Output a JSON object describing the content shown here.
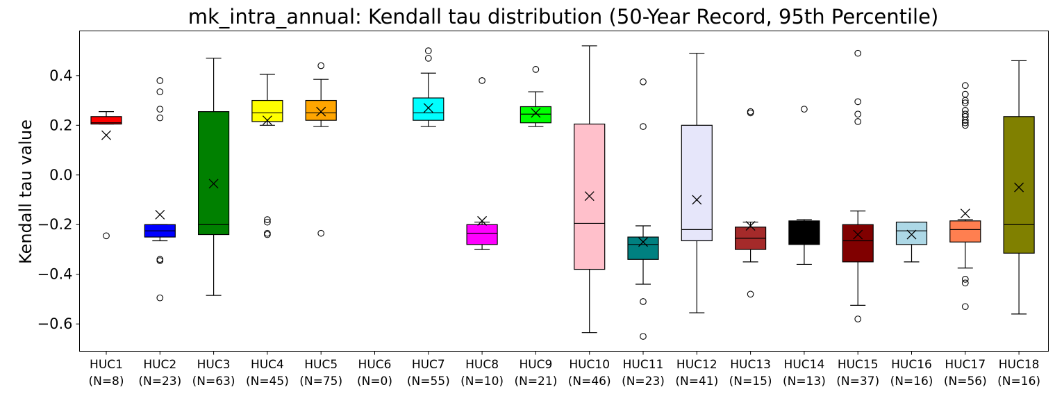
{
  "chart_data": {
    "type": "boxplot",
    "title": "mk_intra_annual: Kendall tau distribution (50-Year Record, 95th Percentile)",
    "ylabel": "Kendall tau value",
    "xlabel": "",
    "ylim": [
      -0.71,
      0.58
    ],
    "yticks": [
      0.4,
      0.2,
      0.0,
      -0.2,
      -0.4,
      -0.6
    ],
    "ytick_labels": [
      "0.4",
      "0.2",
      "0.0",
      "−0.2",
      "−0.4",
      "−0.6"
    ],
    "grid": false,
    "mean_marker": "x",
    "groups": [
      {
        "label": "HUC1",
        "n_label": "(N=8)",
        "color": "#ff0000",
        "q1": 0.205,
        "median": 0.21,
        "q3": 0.235,
        "whisker_low": 0.205,
        "whisker_high": 0.255,
        "mean": 0.16,
        "outliers": [
          -0.245
        ]
      },
      {
        "label": "HUC2",
        "n_label": "(N=23)",
        "color": "#0000ff",
        "q1": -0.25,
        "median": -0.225,
        "q3": -0.2,
        "whisker_low": -0.265,
        "whisker_high": -0.2,
        "mean": -0.16,
        "outliers": [
          0.38,
          0.335,
          0.265,
          0.23,
          -0.34,
          -0.345,
          -0.495
        ]
      },
      {
        "label": "HUC3",
        "n_label": "(N=63)",
        "color": "#008000",
        "q1": -0.24,
        "median": -0.2,
        "q3": 0.255,
        "whisker_low": -0.485,
        "whisker_high": 0.47,
        "mean": -0.035,
        "outliers": []
      },
      {
        "label": "HUC4",
        "n_label": "(N=45)",
        "color": "#ffff00",
        "q1": 0.215,
        "median": 0.25,
        "q3": 0.3,
        "whisker_low": 0.2,
        "whisker_high": 0.405,
        "mean": 0.22,
        "outliers": [
          -0.18,
          -0.19,
          -0.235,
          -0.24
        ]
      },
      {
        "label": "HUC5",
        "n_label": "(N=75)",
        "color": "#ffa500",
        "q1": 0.22,
        "median": 0.25,
        "q3": 0.3,
        "whisker_low": 0.195,
        "whisker_high": 0.385,
        "mean": 0.255,
        "outliers": [
          0.44,
          -0.235
        ]
      },
      {
        "label": "HUC6",
        "n_label": "(N=0)",
        "color": "#ffffff",
        "empty": true
      },
      {
        "label": "HUC7",
        "n_label": "(N=55)",
        "color": "#00ffff",
        "q1": 0.22,
        "median": 0.25,
        "q3": 0.31,
        "whisker_low": 0.195,
        "whisker_high": 0.41,
        "mean": 0.27,
        "outliers": [
          0.5,
          0.47
        ]
      },
      {
        "label": "HUC8",
        "n_label": "(N=10)",
        "color": "#ff00ff",
        "q1": -0.28,
        "median": -0.235,
        "q3": -0.2,
        "whisker_low": -0.3,
        "whisker_high": -0.19,
        "mean": -0.185,
        "outliers": [
          0.38
        ]
      },
      {
        "label": "HUC9",
        "n_label": "(N=21)",
        "color": "#00ff00",
        "q1": 0.21,
        "median": 0.245,
        "q3": 0.275,
        "whisker_low": 0.195,
        "whisker_high": 0.335,
        "mean": 0.25,
        "outliers": [
          0.425
        ]
      },
      {
        "label": "HUC10",
        "n_label": "(N=46)",
        "color": "#ffc0cb",
        "q1": -0.38,
        "median": -0.195,
        "q3": 0.205,
        "whisker_low": -0.635,
        "whisker_high": 0.52,
        "mean": -0.085,
        "outliers": []
      },
      {
        "label": "HUC11",
        "n_label": "(N=23)",
        "color": "#008080",
        "q1": -0.34,
        "median": -0.28,
        "q3": -0.25,
        "whisker_low": -0.44,
        "whisker_high": -0.205,
        "mean": -0.27,
        "outliers": [
          0.375,
          0.195,
          -0.51,
          -0.65
        ]
      },
      {
        "label": "HUC12",
        "n_label": "(N=41)",
        "color": "#e6e6fa",
        "q1": -0.265,
        "median": -0.22,
        "q3": 0.2,
        "whisker_low": -0.555,
        "whisker_high": 0.49,
        "mean": -0.1,
        "outliers": []
      },
      {
        "label": "HUC13",
        "n_label": "(N=15)",
        "color": "#a52a2a",
        "q1": -0.3,
        "median": -0.255,
        "q3": -0.21,
        "whisker_low": -0.35,
        "whisker_high": -0.19,
        "mean": -0.205,
        "outliers": [
          0.255,
          0.25,
          -0.48
        ]
      },
      {
        "label": "HUC14",
        "n_label": "(N=13)",
        "color": "#000000",
        "q1": -0.28,
        "median": -0.2,
        "q3": -0.185,
        "whisker_low": -0.36,
        "whisker_high": -0.18,
        "mean": -0.23,
        "outliers": [
          0.265
        ]
      },
      {
        "label": "HUC15",
        "n_label": "(N=37)",
        "color": "#800000",
        "q1": -0.35,
        "median": -0.265,
        "q3": -0.2,
        "whisker_low": -0.525,
        "whisker_high": -0.145,
        "mean": -0.24,
        "outliers": [
          0.49,
          0.295,
          0.245,
          0.215,
          -0.58
        ]
      },
      {
        "label": "HUC16",
        "n_label": "(N=16)",
        "color": "#add8e6",
        "q1": -0.28,
        "median": -0.225,
        "q3": -0.19,
        "whisker_low": -0.35,
        "whisker_high": -0.19,
        "mean": -0.24,
        "outliers": []
      },
      {
        "label": "HUC17",
        "n_label": "(N=56)",
        "color": "#ff7f50",
        "q1": -0.27,
        "median": -0.22,
        "q3": -0.185,
        "whisker_low": -0.375,
        "whisker_high": -0.18,
        "mean": -0.155,
        "outliers": [
          0.36,
          0.325,
          0.3,
          0.29,
          0.26,
          0.245,
          0.235,
          0.22,
          0.21,
          0.2,
          -0.42,
          -0.435,
          -0.53
        ]
      },
      {
        "label": "HUC18",
        "n_label": "(N=16)",
        "color": "#808000",
        "q1": -0.315,
        "median": -0.2,
        "q3": 0.235,
        "whisker_low": -0.56,
        "whisker_high": 0.46,
        "mean": -0.05,
        "outliers": []
      }
    ]
  }
}
